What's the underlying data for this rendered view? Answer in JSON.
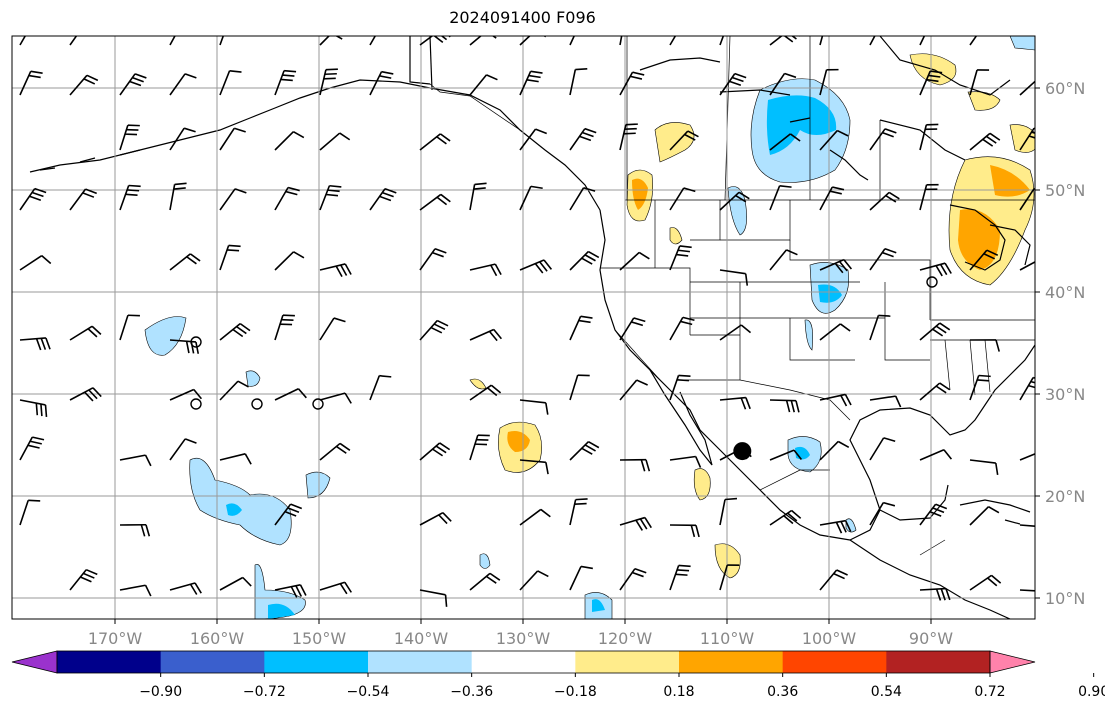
{
  "title": "2024091400 F096",
  "map": {
    "lon_range": [
      -180,
      -80
    ],
    "lat_range": [
      8,
      65
    ],
    "lon_ticks": [
      "170°W",
      "160°W",
      "150°W",
      "140°W",
      "130°W",
      "120°W",
      "110°W",
      "100°W",
      "90°W"
    ],
    "lat_ticks": [
      "60°N",
      "50°N",
      "40°N",
      "30°N",
      "20°N",
      "10°N"
    ],
    "grid": true,
    "station_marker": {
      "lon": -108.5,
      "lat": 24.4
    }
  },
  "colorbar": {
    "ticks": [
      "−0.90",
      "−0.72",
      "−0.54",
      "−0.36",
      "−0.18",
      "0.18",
      "0.36",
      "0.54",
      "0.72",
      "0.90"
    ],
    "colors": [
      "#9a32cd",
      "#00008b",
      "#3a5fcd",
      "#00bfff",
      "#b0e2ff",
      "#ffffff",
      "#ffec8b",
      "#ffa500",
      "#ff4500",
      "#b22222",
      "#ff82ab"
    ],
    "extend": "both"
  }
}
